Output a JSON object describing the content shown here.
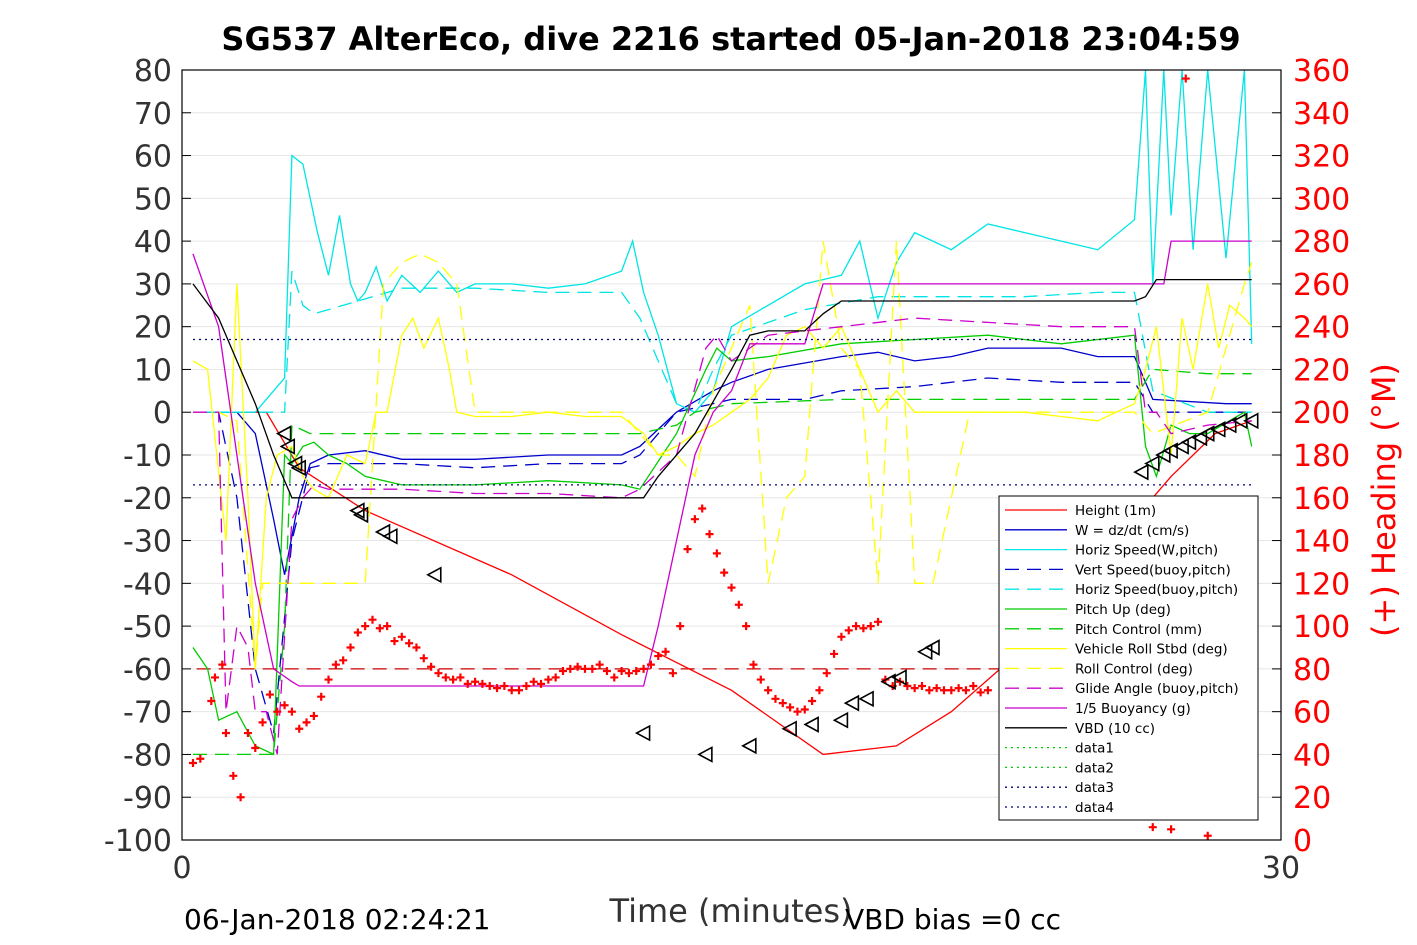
{
  "chart_data": {
    "type": "line",
    "title": "SG537 AlterEco, dive 2216 started 05-Jan-2018 23:04:59",
    "xlabel": "Time (minutes)",
    "ylabel_right": "(+) Heading (°M)",
    "footer_left": "06-Jan-2018 02:24:21",
    "footer_right": "VBD bias =0 cc",
    "xlim": [
      0,
      30
    ],
    "ylim": [
      -100,
      80
    ],
    "y2lim": [
      0,
      360
    ],
    "xticks": [
      "0",
      "30"
    ],
    "yticks": [
      "80",
      "70",
      "60",
      "50",
      "40",
      "30",
      "20",
      "10",
      "0",
      "-10",
      "-20",
      "-30",
      "-40",
      "-50",
      "-60",
      "-70",
      "-80",
      "-90",
      "-100"
    ],
    "y2ticks": [
      "360",
      "340",
      "320",
      "300",
      "280",
      "260",
      "240",
      "220",
      "200",
      "180",
      "160",
      "140",
      "120",
      "100",
      "80",
      "60",
      "40",
      "20",
      "0"
    ],
    "grid": true,
    "legend_position": "lower-right",
    "series": [
      {
        "name": "Height (1m)",
        "color": "#ff0000",
        "style": "solid",
        "x": [
          0.3,
          2.3,
          3.2,
          5.0,
          9.0,
          12.0,
          15.0,
          17.5,
          19.5,
          21.0,
          23.0,
          25.0,
          27.0,
          28.2,
          29.2
        ],
        "y": [
          0,
          0,
          -13,
          -23,
          -38,
          -52,
          -65,
          -80,
          -78,
          -70,
          -55,
          -35,
          -15,
          -5,
          -2
        ]
      },
      {
        "name": "W = dz/dt (cm/s)",
        "color": "#0000cc",
        "style": "solid",
        "x": [
          0.3,
          1.5,
          2.0,
          2.5,
          2.8,
          3.2,
          3.5,
          4.0,
          5.0,
          6.0,
          8.0,
          10.0,
          12.0,
          12.5,
          13.5,
          14.5,
          15.0,
          16.0,
          18.0,
          19.0,
          20.0,
          21.0,
          22.0,
          24.0,
          25.0,
          26.0,
          26.5,
          28.5,
          29.2
        ],
        "y": [
          0,
          0,
          -5,
          -25,
          -38,
          -20,
          -12,
          -10,
          -9,
          -11,
          -11,
          -10,
          -10,
          -8,
          0,
          5,
          7,
          10,
          13,
          14,
          12,
          13,
          15,
          15,
          13,
          13,
          3,
          2,
          2
        ]
      },
      {
        "name": "Horiz Speed(W,pitch)",
        "color": "#00e5e5",
        "style": "solid",
        "x": [
          0.3,
          1.5,
          2.0,
          2.8,
          3.0,
          3.3,
          3.7,
          4.0,
          4.3,
          4.6,
          4.8,
          5.0,
          5.3,
          5.6,
          6.0,
          6.5,
          7.0,
          7.5,
          8.0,
          9.0,
          10.0,
          11.0,
          12.0,
          12.3,
          12.6,
          13.0,
          13.5,
          14.0,
          14.5,
          15.0,
          16.0,
          17.0,
          18.0,
          18.5,
          19.0,
          19.5,
          20.0,
          21.0,
          22.0,
          23.0,
          24.0,
          25.0,
          26.0,
          26.3,
          26.5,
          26.8,
          27.0,
          27.3,
          27.6,
          28.0,
          28.5,
          29.0,
          29.2
        ],
        "y": [
          0,
          0,
          0,
          8,
          60,
          58,
          42,
          32,
          46,
          30,
          26,
          28,
          34,
          26,
          32,
          28,
          33,
          28,
          30,
          30,
          29,
          30,
          33,
          40,
          28,
          18,
          2,
          0,
          5,
          20,
          25,
          30,
          32,
          40,
          22,
          35,
          42,
          38,
          44,
          42,
          40,
          38,
          45,
          80,
          30,
          80,
          46,
          80,
          38,
          80,
          36,
          80,
          16
        ]
      },
      {
        "name": "Vert Speed(buoy,pitch)",
        "color": "#0000cc",
        "style": "dashed",
        "x": [
          0.3,
          1.0,
          1.5,
          2.0,
          2.5,
          3.0,
          3.5,
          4.0,
          6.0,
          8.0,
          10.0,
          12.0,
          12.5,
          13.5,
          15.0,
          17.0,
          18.0,
          20.0,
          22.0,
          24.0,
          26.0,
          26.5,
          29.2
        ],
        "y": [
          0,
          0,
          -20,
          -60,
          -75,
          -30,
          -13,
          -12,
          -12,
          -13,
          -12,
          -12,
          -10,
          0,
          3,
          3,
          5,
          6,
          8,
          7,
          7,
          0,
          0
        ]
      },
      {
        "name": "Horiz Speed(buoy,pitch)",
        "color": "#00e5e5",
        "style": "dashed",
        "x": [
          0.3,
          1.5,
          2.0,
          2.8,
          3.0,
          3.3,
          3.6,
          4.0,
          6.0,
          8.0,
          10.0,
          12.0,
          12.5,
          13.0,
          13.5,
          14.0,
          14.5,
          15.0,
          17.0,
          19.0,
          21.0,
          23.0,
          25.0,
          26.0,
          26.5,
          28.0,
          29.2
        ],
        "y": [
          0,
          0,
          0,
          0,
          33,
          25,
          23,
          24,
          29,
          29,
          28,
          28,
          22,
          12,
          2,
          0,
          10,
          18,
          24,
          27,
          27,
          27,
          28,
          28,
          5,
          0,
          0
        ]
      },
      {
        "name": "Pitch Up (deg)",
        "color": "#00cc00",
        "style": "solid",
        "x": [
          0.3,
          0.7,
          1.0,
          1.5,
          2.0,
          2.5,
          2.8,
          3.0,
          3.3,
          3.6,
          4.0,
          4.5,
          5.0,
          6.0,
          8.0,
          10.0,
          12.0,
          12.5,
          13.5,
          14.3,
          14.6,
          15.0,
          16.0,
          18.0,
          20.0,
          22.0,
          24.0,
          26.0,
          26.3,
          26.6,
          27.0,
          27.5,
          28.0,
          29.0,
          29.2
        ],
        "y": [
          -55,
          -60,
          -72,
          -70,
          -78,
          -80,
          -10,
          -12,
          -8,
          -7,
          -10,
          -12,
          -15,
          -17,
          -17,
          -16,
          -17,
          -18,
          -5,
          10,
          15,
          12,
          13,
          16,
          17,
          18,
          16,
          18,
          -8,
          -15,
          -3,
          -5,
          -5,
          0,
          -8
        ]
      },
      {
        "name": "Pitch Control (mm)",
        "color": "#00cc00",
        "style": "dashed",
        "x": [
          0.3,
          1.0,
          2.5,
          2.8,
          3.0,
          3.5,
          12.5,
          13.5,
          14.0,
          15.0,
          18.0,
          26.0,
          26.5,
          28.0,
          29.2
        ],
        "y": [
          -80,
          -80,
          -80,
          -50,
          -3,
          -5,
          -5,
          -3,
          0,
          2,
          3,
          3,
          10,
          9,
          9
        ]
      },
      {
        "name": "Vehicle Roll Stbd (deg)",
        "color": "#ffff00",
        "style": "solid",
        "x": [
          0.3,
          0.7,
          1.2,
          1.5,
          1.8,
          2.0,
          2.3,
          2.6,
          3.0,
          3.3,
          3.6,
          4.0,
          4.5,
          5.0,
          5.3,
          5.6,
          6.0,
          6.3,
          6.6,
          7.0,
          7.3,
          7.5,
          8.0,
          9.0,
          10.0,
          11.0,
          12.0,
          12.3,
          12.6,
          13.0,
          13.5,
          14.0,
          14.5,
          15.0,
          15.5,
          16.0,
          16.5,
          17.0,
          17.5,
          18.0,
          18.5,
          19.0,
          19.5,
          20.0,
          21.0,
          22.0,
          23.0,
          24.0,
          25.0,
          26.0,
          26.3,
          26.6,
          27.0,
          27.3,
          27.6,
          28.0,
          28.3,
          28.6,
          29.0,
          29.2
        ],
        "y": [
          12,
          10,
          -30,
          30,
          -20,
          -60,
          -20,
          -10,
          -8,
          -15,
          -18,
          -20,
          -10,
          -12,
          0,
          0,
          18,
          22,
          15,
          22,
          10,
          0,
          -1,
          -1,
          0,
          -1,
          -1,
          -3,
          -5,
          -10,
          -8,
          -5,
          -3,
          0,
          3,
          8,
          18,
          20,
          15,
          20,
          10,
          0,
          5,
          0,
          0,
          0,
          0,
          -1,
          -2,
          2,
          10,
          20,
          -10,
          22,
          10,
          30,
          15,
          25,
          22,
          20
        ]
      },
      {
        "name": "Roll Control (deg)",
        "color": "#ffff00",
        "style": "dashed",
        "x": [
          0.3,
          1.0,
          1.5,
          2.0,
          2.2,
          2.5,
          3.0,
          3.3,
          4.0,
          4.5,
          5.0,
          5.5,
          6.0,
          6.5,
          7.0,
          7.5,
          8.0,
          12.0,
          12.5,
          13.0,
          13.5,
          14.0,
          14.5,
          15.0,
          15.5,
          16.0,
          16.5,
          17.0,
          17.5,
          18.0,
          18.5,
          19.0,
          19.5,
          20.0,
          20.5,
          21.0,
          21.5,
          22.0,
          24.0,
          26.0,
          26.5,
          28.0,
          29.0,
          29.2
        ],
        "y": [
          0,
          0,
          -2,
          -60,
          -40,
          -40,
          -40,
          -40,
          -40,
          -40,
          -40,
          30,
          35,
          37,
          35,
          30,
          0,
          0,
          -5,
          -10,
          -10,
          -15,
          5,
          15,
          25,
          -40,
          -20,
          -15,
          40,
          15,
          10,
          -40,
          40,
          -40,
          -40,
          -20,
          0,
          0,
          0,
          0,
          -5,
          0,
          30,
          35
        ]
      },
      {
        "name": "Glide Angle (buoy,pitch)",
        "color": "#cc00cc",
        "style": "dashed",
        "x": [
          0.3,
          1.0,
          1.2,
          1.5,
          1.8,
          2.0,
          2.3,
          2.6,
          3.0,
          3.3,
          3.6,
          4.0,
          6.0,
          8.0,
          10.0,
          12.0,
          12.5,
          13.5,
          14.3,
          14.6,
          15.0,
          16.0,
          18.0,
          20.0,
          22.0,
          24.0,
          26.0,
          26.3,
          26.6,
          27.0,
          28.0,
          29.2
        ],
        "y": [
          0,
          0,
          -70,
          -50,
          -55,
          -70,
          -70,
          -80,
          -25,
          -20,
          -17,
          -18,
          -18,
          -19,
          -19,
          -20,
          -18,
          -10,
          15,
          18,
          12,
          18,
          20,
          22,
          21,
          20,
          20,
          0,
          0,
          -5,
          -3,
          -2
        ]
      },
      {
        "name": "1/5 Buoyancy (g)",
        "color": "#cc00cc",
        "style": "solid",
        "x": [
          0.3,
          1.0,
          1.5,
          2.0,
          2.5,
          3.0,
          3.2,
          4.0,
          8.0,
          12.0,
          12.6,
          13.0,
          13.5,
          14.0,
          14.5,
          15.0,
          15.5,
          16.5,
          17.0,
          17.5,
          20.0,
          24.0,
          26.3,
          26.8,
          27.0,
          29.2
        ],
        "y": [
          37,
          20,
          -10,
          -40,
          -60,
          -63,
          -64,
          -64,
          -64,
          -64,
          -64,
          -50,
          -30,
          -10,
          0,
          5,
          16,
          16,
          16,
          30,
          30,
          30,
          30,
          30,
          40,
          40
        ]
      },
      {
        "name": "VBD (10 cc)",
        "color": "#000000",
        "style": "solid",
        "x": [
          0.3,
          1.0,
          1.5,
          2.0,
          2.5,
          3.0,
          3.2,
          6.0,
          12.0,
          12.6,
          13.0,
          14.0,
          15.0,
          15.5,
          16.0,
          17.0,
          17.5,
          18.0,
          19.0,
          24.0,
          26.0,
          26.3,
          26.6,
          29.2
        ],
        "y": [
          30,
          22,
          12,
          2,
          -10,
          -20,
          -20,
          -20,
          -20,
          -20,
          -15,
          -5,
          10,
          18,
          19,
          19,
          23,
          26,
          26,
          26,
          26,
          27,
          31,
          31
        ]
      },
      {
        "name": "data1",
        "color": "#00cc00",
        "style": "dotted",
        "x": [],
        "y": []
      },
      {
        "name": "data2",
        "color": "#00cc00",
        "style": "dotted",
        "x": [],
        "y": []
      },
      {
        "name": "data3",
        "color": "#000080",
        "style": "dotted",
        "x": [
          0.3,
          29.2
        ],
        "y": [
          17,
          17
        ]
      },
      {
        "name": "data4",
        "color": "#000080",
        "style": "dotted",
        "x": [
          0.3,
          29.2
        ],
        "y": [
          -17,
          -17
        ]
      }
    ],
    "reference_line": {
      "color": "#cc0000",
      "style": "dashed",
      "y2": 80
    },
    "heading_points": {
      "color": "#ff0000",
      "axis": "right",
      "x": [
        0.3,
        0.5,
        0.8,
        0.9,
        1.1,
        1.2,
        1.4,
        1.6,
        1.8,
        2.0,
        2.2,
        2.4,
        2.6,
        2.8,
        3.0,
        3.2,
        3.4,
        3.6,
        3.8,
        4.0,
        4.2,
        4.4,
        4.6,
        4.8,
        5.0,
        5.2,
        5.4,
        5.6,
        5.8,
        6.0,
        6.2,
        6.4,
        6.6,
        6.8,
        7.0,
        7.2,
        7.4,
        7.6,
        7.8,
        8.0,
        8.2,
        8.4,
        8.6,
        8.8,
        9.0,
        9.2,
        9.4,
        9.6,
        9.8,
        10.0,
        10.2,
        10.4,
        10.6,
        10.8,
        11.0,
        11.2,
        11.4,
        11.6,
        11.8,
        12.0,
        12.2,
        12.4,
        12.6,
        12.8,
        13.0,
        13.2,
        13.4,
        13.6,
        13.8,
        14.0,
        14.2,
        14.4,
        14.6,
        14.8,
        15.0,
        15.2,
        15.4,
        15.6,
        15.8,
        16.0,
        16.2,
        16.4,
        16.6,
        16.8,
        17.0,
        17.2,
        17.4,
        17.6,
        17.8,
        18.0,
        18.2,
        18.4,
        18.6,
        18.8,
        19.0,
        19.2,
        19.4,
        19.6,
        19.8,
        20.0,
        20.2,
        20.4,
        20.6,
        20.8,
        21.0,
        21.2,
        21.4,
        21.6,
        21.8,
        22.0,
        26.5,
        27.0,
        27.4,
        28.0
      ],
      "y": [
        36,
        38,
        65,
        76,
        82,
        50,
        30,
        20,
        50,
        43,
        55,
        68,
        60,
        63,
        60,
        52,
        55,
        58,
        67,
        75,
        82,
        84,
        90,
        97,
        100,
        103,
        99,
        100,
        93,
        95,
        92,
        90,
        85,
        81,
        78,
        76,
        75,
        76,
        73,
        74,
        73,
        72,
        71,
        72,
        70,
        70,
        72,
        74,
        73,
        75,
        76,
        79,
        80,
        81,
        80,
        80,
        82,
        79,
        76,
        79,
        78,
        79,
        80,
        82,
        86,
        88,
        78,
        100,
        136,
        150,
        155,
        143,
        134,
        125,
        118,
        110,
        100,
        82,
        75,
        70,
        66,
        64,
        62,
        60,
        61,
        65,
        70,
        78,
        87,
        95,
        98,
        100,
        99,
        100,
        102,
        75,
        72,
        74,
        72,
        71,
        72,
        70,
        71,
        70,
        70,
        71,
        70,
        72,
        69,
        70,
        6,
        5,
        356,
        2
      ]
    },
    "height_markers": {
      "color": "#000000",
      "x": [
        2.8,
        2.9,
        3.1,
        3.2,
        4.8,
        4.9,
        5.5,
        5.7,
        6.9,
        12.6,
        14.3,
        15.5,
        16.6,
        17.2,
        18.0,
        18.3,
        18.7,
        19.3,
        19.6,
        20.3,
        20.5,
        26.2,
        26.5,
        26.8,
        27.0,
        27.3,
        27.5,
        27.8,
        28.0,
        28.3,
        28.6,
        28.9,
        29.2
      ],
      "y": [
        -5,
        -8,
        -12,
        -13,
        -23,
        -24,
        -28,
        -29,
        -38,
        -75,
        -80,
        -78,
        -74,
        -73,
        -72,
        -68,
        -67,
        -63,
        -62,
        -56,
        -55,
        -14,
        -12,
        -10,
        -9,
        -8,
        -7,
        -6,
        -5,
        -4,
        -3,
        -2,
        -2
      ]
    }
  }
}
